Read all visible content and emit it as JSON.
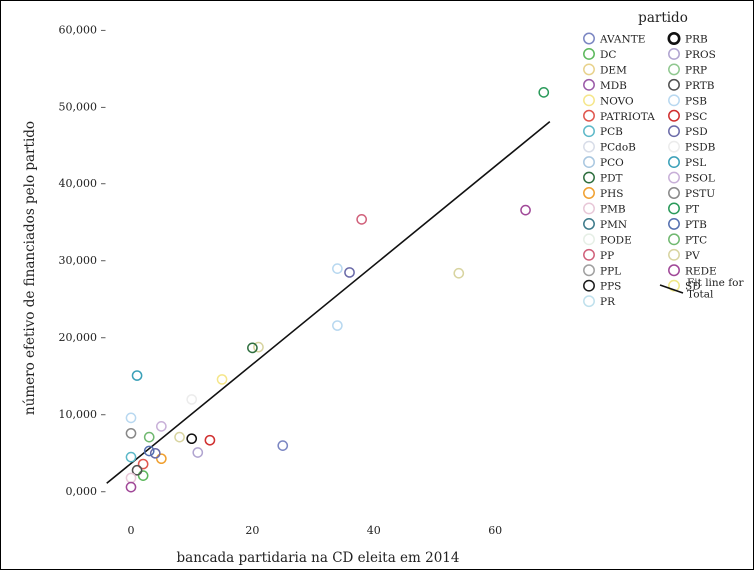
{
  "chart_data": {
    "type": "scatter",
    "xlabel": "bancada partidaria na CD eleita em 2014",
    "ylabel": "número efetivo de financiados pelo partido",
    "xlim": [
      -4,
      70
    ],
    "ylim": [
      -2500,
      63000
    ],
    "x_ticks": [
      0,
      20,
      40,
      60
    ],
    "y_ticks": [
      0,
      10000,
      20000,
      30000,
      40000,
      50000,
      60000
    ],
    "x_tick_labels": [
      "0",
      "20",
      "40",
      "60"
    ],
    "y_tick_labels": [
      "0,000 –",
      "10,000 –",
      "20,000 –",
      "30,000 –",
      "40,000 –",
      "50,000 –",
      "60,000 –"
    ],
    "grid": false,
    "legend_position": "top-right",
    "legend_title": "partido",
    "legend": [
      {
        "name": "AVANTE",
        "color": "#7b86c2"
      },
      {
        "name": "DC",
        "color": "#5cb85c"
      },
      {
        "name": "DEM",
        "color": "#e8d28c"
      },
      {
        "name": "MDB",
        "color": "#9b5ba8"
      },
      {
        "name": "NOVO",
        "color": "#f5e68a"
      },
      {
        "name": "PATRIOTA",
        "color": "#e0574f"
      },
      {
        "name": "PCB",
        "color": "#5cb8c8"
      },
      {
        "name": "PCdoB",
        "color": "#d8dde8"
      },
      {
        "name": "PCO",
        "color": "#a9c7e0"
      },
      {
        "name": "PDT",
        "color": "#2e6e3e"
      },
      {
        "name": "PHS",
        "color": "#f0a030"
      },
      {
        "name": "PMB",
        "color": "#e8c8d8"
      },
      {
        "name": "PMN",
        "color": "#3d7a8a"
      },
      {
        "name": "PODE",
        "color": "#e6efe6"
      },
      {
        "name": "PP",
        "color": "#d0607a"
      },
      {
        "name": "PPL",
        "color": "#a0a0a0"
      },
      {
        "name": "PPS",
        "color": "#1a1a1a"
      },
      {
        "name": "PR",
        "color": "#bfe0ec"
      },
      {
        "name": "PRB",
        "color": "#111111"
      },
      {
        "name": "PROS",
        "color": "#b0a4d0"
      },
      {
        "name": "PRP",
        "color": "#90c890"
      },
      {
        "name": "PRTB",
        "color": "#505050"
      },
      {
        "name": "PSB",
        "color": "#b8d8f0"
      },
      {
        "name": "PSC",
        "color": "#d03030"
      },
      {
        "name": "PSD",
        "color": "#6a6aa8"
      },
      {
        "name": "PSDB",
        "color": "#ececec"
      },
      {
        "name": "PSL",
        "color": "#3aa0b8"
      },
      {
        "name": "PSOL",
        "color": "#c8b0d8"
      },
      {
        "name": "PSTU",
        "color": "#888888"
      },
      {
        "name": "PT",
        "color": "#2a9a5a"
      },
      {
        "name": "PTB",
        "color": "#5570b0"
      },
      {
        "name": "PTC",
        "color": "#70b870"
      },
      {
        "name": "PV",
        "color": "#d8d4a0"
      },
      {
        "name": "REDE",
        "color": "#a04898"
      },
      {
        "name": "SD",
        "color": "#f0e888"
      }
    ],
    "fit_line_label": "Fit line for Total",
    "fit_line": {
      "x": [
        -4,
        69
      ],
      "y": [
        1000,
        48000
      ],
      "color": "#111111"
    },
    "points": [
      {
        "party": "PT",
        "x": 68,
        "y": 51800
      },
      {
        "party": "REDE",
        "x": 65,
        "y": 36500
      },
      {
        "party": "PV",
        "x": 54,
        "y": 28300
      },
      {
        "party": "PP",
        "x": 38,
        "y": 35300
      },
      {
        "party": "PSD",
        "x": 36,
        "y": 28400
      },
      {
        "party": "PSB",
        "x": 34,
        "y": 28900
      },
      {
        "party": "PSB",
        "x": 34,
        "y": 21500
      },
      {
        "party": "AVANTE",
        "x": 25,
        "y": 5900
      },
      {
        "party": "PV",
        "x": 21,
        "y": 18700
      },
      {
        "party": "PDT",
        "x": 20,
        "y": 18600
      },
      {
        "party": "NOVO",
        "x": 15,
        "y": 14500
      },
      {
        "party": "PSC",
        "x": 13,
        "y": 6600
      },
      {
        "party": "PSDB",
        "x": 10,
        "y": 11900
      },
      {
        "party": "PROS",
        "x": 11,
        "y": 5000
      },
      {
        "party": "PRB",
        "x": 10,
        "y": 6800
      },
      {
        "party": "PV",
        "x": 8,
        "y": 7000
      },
      {
        "party": "PSOL",
        "x": 5,
        "y": 8400
      },
      {
        "party": "PHS",
        "x": 5,
        "y": 4200
      },
      {
        "party": "PSD",
        "x": 4,
        "y": 4900
      },
      {
        "party": "PTB",
        "x": 3,
        "y": 5200
      },
      {
        "party": "PTC",
        "x": 3,
        "y": 7000
      },
      {
        "party": "PATRIOTA",
        "x": 2,
        "y": 3500
      },
      {
        "party": "DC",
        "x": 2,
        "y": 2000
      },
      {
        "party": "PSL",
        "x": 1,
        "y": 15000
      },
      {
        "party": "PRTB",
        "x": 1,
        "y": 2700
      },
      {
        "party": "PSTU",
        "x": 0,
        "y": 7500
      },
      {
        "party": "PSB",
        "x": 0,
        "y": 9500
      },
      {
        "party": "PCB",
        "x": 0,
        "y": 4400
      },
      {
        "party": "PMB",
        "x": 0,
        "y": 1700
      },
      {
        "party": "REDE",
        "x": 0,
        "y": 500
      }
    ]
  }
}
